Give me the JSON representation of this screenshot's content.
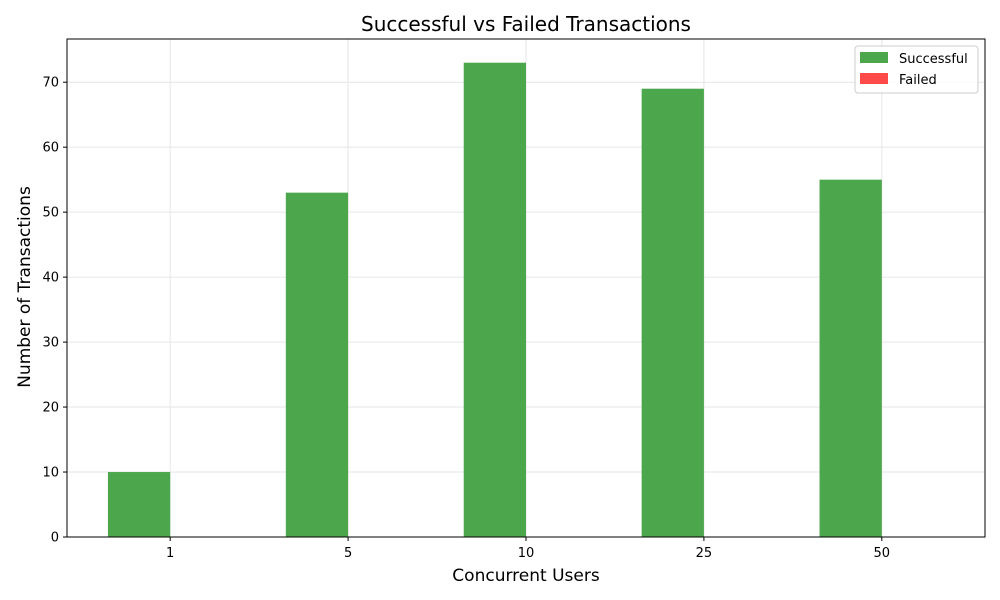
{
  "chart_data": {
    "type": "bar",
    "title": "Successful vs Failed Transactions",
    "xlabel": "Concurrent Users",
    "ylabel": "Number of Transactions",
    "categories": [
      "1",
      "5",
      "10",
      "25",
      "50"
    ],
    "series": [
      {
        "name": "Successful",
        "values": [
          10,
          53,
          73,
          69,
          55
        ],
        "color": "#4ca74c"
      },
      {
        "name": "Failed",
        "values": [
          0,
          0,
          0,
          0,
          0
        ],
        "color": "#ff4a4a"
      }
    ],
    "ylim": [
      0,
      76.65
    ],
    "yticks": [
      0,
      10,
      20,
      30,
      40,
      50,
      60,
      70
    ],
    "grid": true,
    "legend_position": "top-right"
  }
}
